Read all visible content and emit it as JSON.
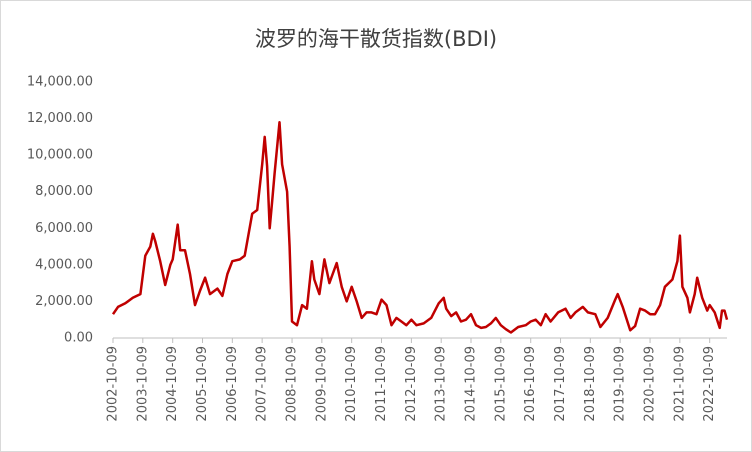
{
  "chart_data": {
    "type": "line",
    "title": "波罗的海干散货指数(BDI)",
    "x": [
      "2002-10-09",
      "2002-12-09",
      "2003-03-09",
      "2003-06-09",
      "2003-09-09",
      "2003-11-09",
      "2004-01-09",
      "2004-02-09",
      "2004-03-09",
      "2004-05-09",
      "2004-07-09",
      "2004-09-09",
      "2004-10-09",
      "2004-12-09",
      "2005-01-09",
      "2005-03-09",
      "2005-05-09",
      "2005-07-09",
      "2005-09-09",
      "2005-11-09",
      "2006-01-09",
      "2006-04-09",
      "2006-06-09",
      "2006-08-09",
      "2006-10-09",
      "2007-01-09",
      "2007-03-09",
      "2007-06-09",
      "2007-08-09",
      "2007-10-09",
      "2007-11-09",
      "2007-12-09",
      "2008-01-09",
      "2008-02-09",
      "2008-03-09",
      "2008-05-09",
      "2008-06-09",
      "2008-08-09",
      "2008-09-09",
      "2008-10-09",
      "2008-12-09",
      "2009-02-09",
      "2009-04-09",
      "2009-06-09",
      "2009-07-09",
      "2009-09-09",
      "2009-11-09",
      "2010-01-09",
      "2010-04-09",
      "2010-06-09",
      "2010-08-09",
      "2010-10-09",
      "2010-12-09",
      "2011-02-09",
      "2011-04-09",
      "2011-06-09",
      "2011-08-09",
      "2011-10-09",
      "2011-12-09",
      "2012-02-09",
      "2012-04-09",
      "2012-06-09",
      "2012-08-09",
      "2012-10-09",
      "2012-12-09",
      "2013-03-09",
      "2013-06-09",
      "2013-09-09",
      "2013-11-09",
      "2013-12-09",
      "2014-02-09",
      "2014-04-09",
      "2014-06-09",
      "2014-08-09",
      "2014-10-09",
      "2014-12-09",
      "2015-02-09",
      "2015-04-09",
      "2015-06-09",
      "2015-08-09",
      "2015-10-09",
      "2015-12-09",
      "2016-02-09",
      "2016-05-09",
      "2016-08-09",
      "2016-10-09",
      "2016-12-09",
      "2017-02-09",
      "2017-04-09",
      "2017-06-09",
      "2017-09-09",
      "2017-12-09",
      "2018-02-09",
      "2018-04-09",
      "2018-07-09",
      "2018-09-09",
      "2018-12-09",
      "2019-02-09",
      "2019-05-09",
      "2019-08-09",
      "2019-09-09",
      "2019-11-09",
      "2020-02-09",
      "2020-04-09",
      "2020-06-09",
      "2020-08-09",
      "2020-10-09",
      "2020-12-09",
      "2021-02-09",
      "2021-04-09",
      "2021-07-09",
      "2021-09-09",
      "2021-10-09",
      "2021-11-09",
      "2022-01-09",
      "2022-02-09",
      "2022-04-09",
      "2022-05-09",
      "2022-07-09",
      "2022-09-09",
      "2022-10-09",
      "2022-12-09",
      "2023-02-09",
      "2023-03-09",
      "2023-04-09",
      "2023-05-09"
    ],
    "series": [
      {
        "name": "BDI",
        "color": "#c00000",
        "values": [
          1300,
          1700,
          1900,
          2200,
          2400,
          4500,
          5000,
          5700,
          5300,
          4200,
          2900,
          4000,
          4300,
          6200,
          4800,
          4800,
          3500,
          1800,
          2600,
          3300,
          2400,
          2700,
          2300,
          3500,
          4200,
          4300,
          4500,
          6800,
          7000,
          9500,
          11000,
          9400,
          6000,
          7500,
          9000,
          11800,
          9500,
          8000,
          5000,
          900,
          700,
          1800,
          1600,
          4200,
          3200,
          2400,
          4300,
          3000,
          4100,
          2800,
          2000,
          2800,
          2000,
          1100,
          1400,
          1400,
          1300,
          2100,
          1800,
          700,
          1100,
          900,
          700,
          1000,
          700,
          800,
          1100,
          1900,
          2200,
          1600,
          1200,
          1400,
          900,
          1000,
          1300,
          700,
          550,
          600,
          800,
          1100,
          700,
          480,
          300,
          600,
          700,
          900,
          1000,
          700,
          1300,
          900,
          1400,
          1600,
          1100,
          1400,
          1700,
          1400,
          1300,
          600,
          1100,
          2100,
          2400,
          1700,
          420,
          650,
          1600,
          1500,
          1300,
          1300,
          1800,
          2800,
          3200,
          4200,
          5600,
          2800,
          2200,
          1400,
          2400,
          3300,
          2200,
          1500,
          1800,
          1400,
          550,
          1500,
          1500,
          1000
        ]
      }
    ],
    "xlim": [
      "2002-10-09",
      "2023-05-09"
    ],
    "xticks": [
      "2002-10-09",
      "2003-10-09",
      "2004-10-09",
      "2005-10-09",
      "2006-10-09",
      "2007-10-09",
      "2008-10-09",
      "2009-10-09",
      "2010-10-09",
      "2011-10-09",
      "2012-10-09",
      "2013-10-09",
      "2014-10-09",
      "2015-10-09",
      "2016-10-09",
      "2017-10-09",
      "2018-10-09",
      "2019-10-09",
      "2020-10-09",
      "2021-10-09",
      "2022-10-09"
    ],
    "ylim": [
      0,
      14000
    ],
    "yticks": [
      {
        "value": 0,
        "label": "0.00"
      },
      {
        "value": 2000,
        "label": "2,000.00"
      },
      {
        "value": 4000,
        "label": "4,000.00"
      },
      {
        "value": 6000,
        "label": "6,000.00"
      },
      {
        "value": 8000,
        "label": "8,000.00"
      },
      {
        "value": 10000,
        "label": "10,000.00"
      },
      {
        "value": 12000,
        "label": "12,000.00"
      },
      {
        "value": 14000,
        "label": "14,000.00"
      }
    ],
    "grid": false
  }
}
